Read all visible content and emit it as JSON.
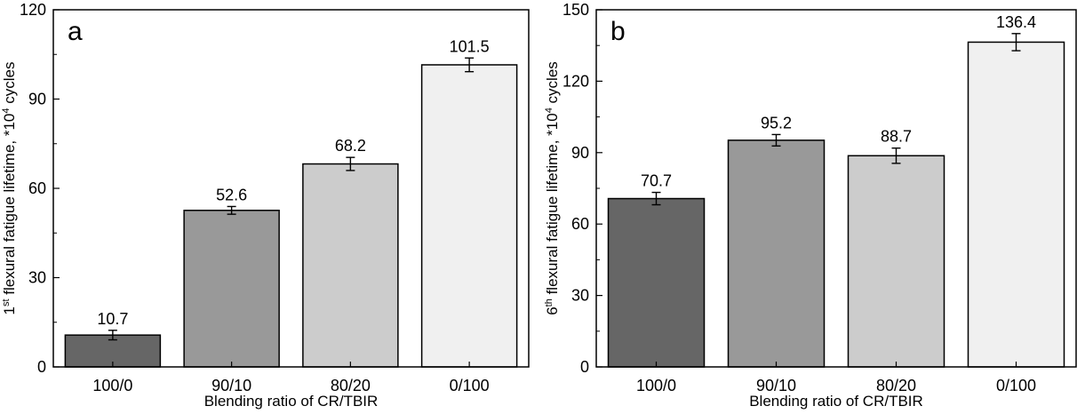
{
  "chart_data": [
    {
      "type": "bar",
      "panel_label": "a",
      "categories": [
        "100/0",
        "90/10",
        "80/20",
        "0/100"
      ],
      "values": [
        10.7,
        52.6,
        68.2,
        101.5
      ],
      "errors": [
        1.6,
        1.3,
        2.2,
        2.3
      ],
      "value_labels": [
        "10.7",
        "52.6",
        "68.2",
        "101.5"
      ],
      "xlabel": "Blending ratio of CR/TBIR",
      "ylabel": {
        "pre": "1",
        "sup1": "st",
        "mid": " flexural fatigue lifetime, *10",
        "sup2": "4",
        "post": " cycles"
      },
      "ylim": [
        0,
        120
      ],
      "yticks": [
        "0",
        "30",
        "60",
        "90",
        "120"
      ],
      "bar_colors": [
        "#666666",
        "#999999",
        "#cccccc",
        "#f0f0f0"
      ],
      "grid": false
    },
    {
      "type": "bar",
      "panel_label": "b",
      "categories": [
        "100/0",
        "90/10",
        "80/20",
        "0/100"
      ],
      "values": [
        70.7,
        95.2,
        88.7,
        136.4
      ],
      "errors": [
        2.6,
        2.4,
        3.2,
        3.6
      ],
      "value_labels": [
        "70.7",
        "95.2",
        "88.7",
        "136.4"
      ],
      "xlabel": "Blending ratio of CR/TBIR",
      "ylabel": {
        "pre": "6",
        "sup1": "th",
        "mid": " flexural fatigue lifetime, *10",
        "sup2": "4",
        "post": " cycles"
      },
      "ylim": [
        0,
        150
      ],
      "yticks": [
        "0",
        "30",
        "60",
        "90",
        "120",
        "150"
      ],
      "bar_colors": [
        "#666666",
        "#999999",
        "#cccccc",
        "#f0f0f0"
      ],
      "grid": false
    }
  ]
}
